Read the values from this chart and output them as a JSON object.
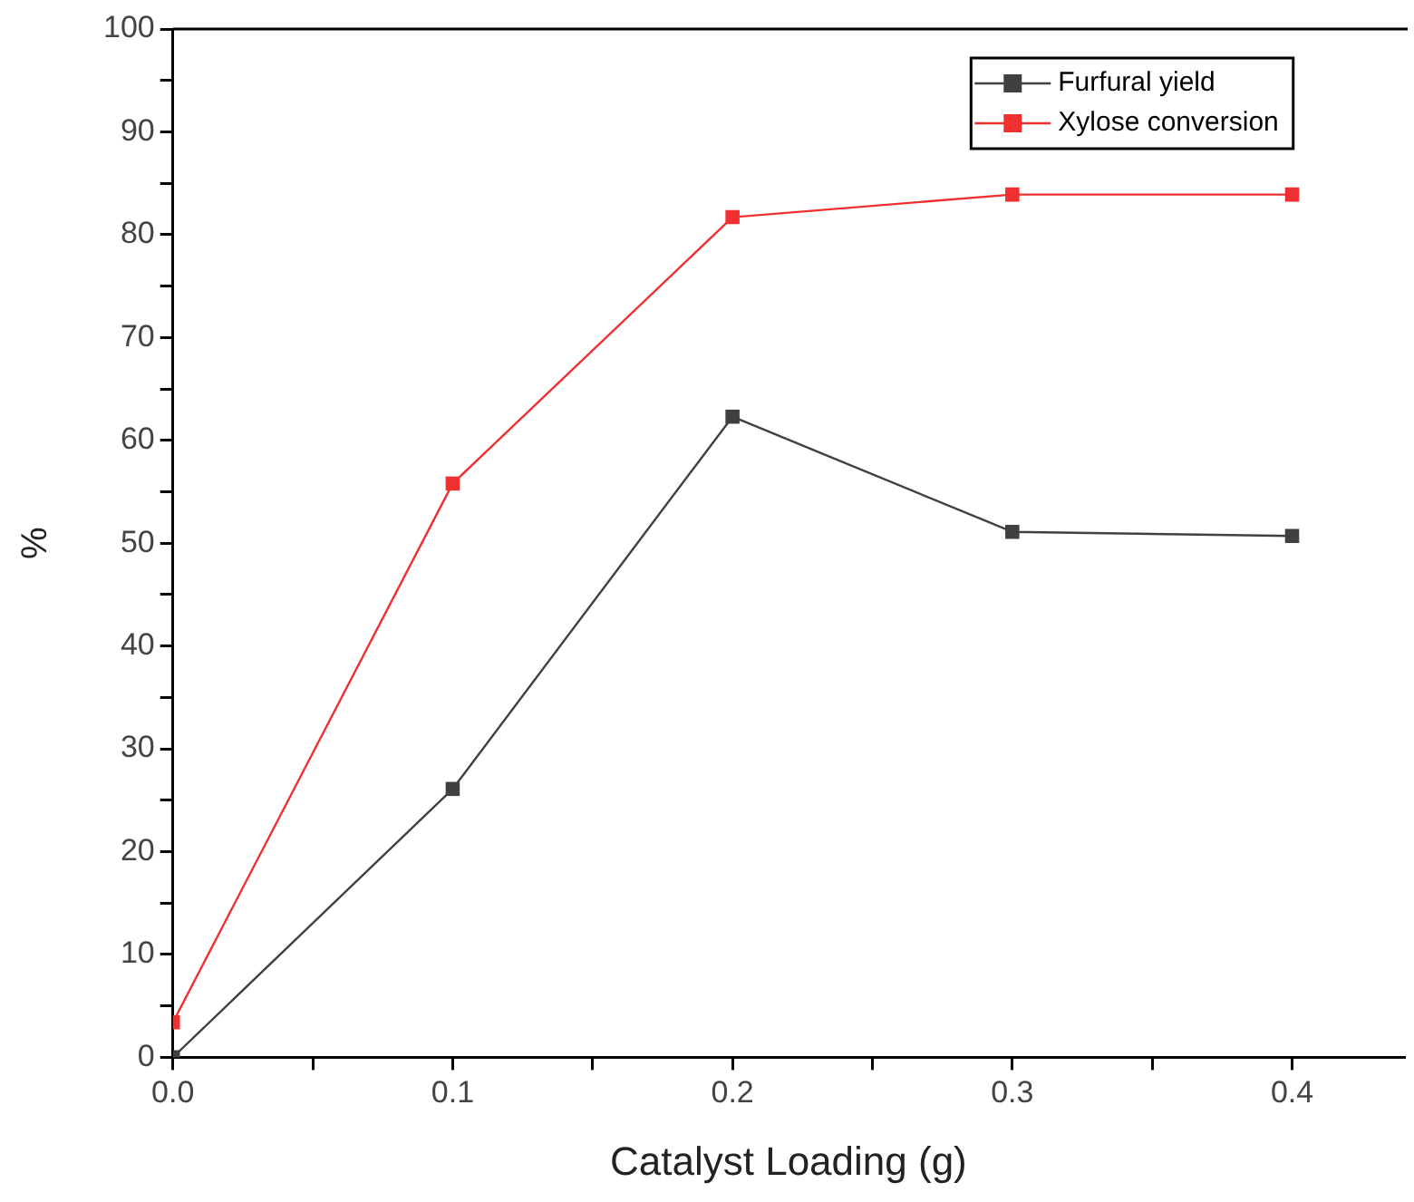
{
  "chart_data": {
    "type": "line",
    "xlabel": "Catalyst Loading (g)",
    "ylabel": "%",
    "x": [
      0,
      0.1,
      0.2,
      0.3,
      0.4
    ],
    "series": [
      {
        "name": "Furfural yield",
        "color": "#404040",
        "values": [
          0,
          26.1,
          62.3,
          51.1,
          50.7
        ]
      },
      {
        "name": "Xylose conversion",
        "color": "#f03030",
        "values": [
          3.4,
          55.8,
          81.7,
          83.9,
          83.9
        ]
      }
    ],
    "xlim": [
      0,
      0.44
    ],
    "ylim": [
      0,
      100
    ],
    "xticks": [
      {
        "value": 0,
        "label": "0.0"
      },
      {
        "value": 0.05,
        "label": null
      },
      {
        "value": 0.1,
        "label": "0.1"
      },
      {
        "value": 0.15,
        "label": null
      },
      {
        "value": 0.2,
        "label": "0.2"
      },
      {
        "value": 0.25,
        "label": null
      },
      {
        "value": 0.3,
        "label": "0.3"
      },
      {
        "value": 0.35,
        "label": null
      },
      {
        "value": 0.4,
        "label": "0.4"
      }
    ],
    "yticks": [
      0,
      {
        "value": 5,
        "label": null
      },
      10,
      {
        "value": 15,
        "label": null
      },
      20,
      {
        "value": 25,
        "label": null
      },
      30,
      {
        "value": 35,
        "label": null
      },
      40,
      {
        "value": 45,
        "label": null
      },
      50,
      {
        "value": 55,
        "label": null
      },
      60,
      {
        "value": 65,
        "label": null
      },
      70,
      {
        "value": 75,
        "label": null
      },
      80,
      {
        "value": 85,
        "label": null
      },
      90,
      {
        "value": 95,
        "label": null
      },
      100
    ],
    "marker": "square",
    "legend": "top right",
    "grid": false
  }
}
